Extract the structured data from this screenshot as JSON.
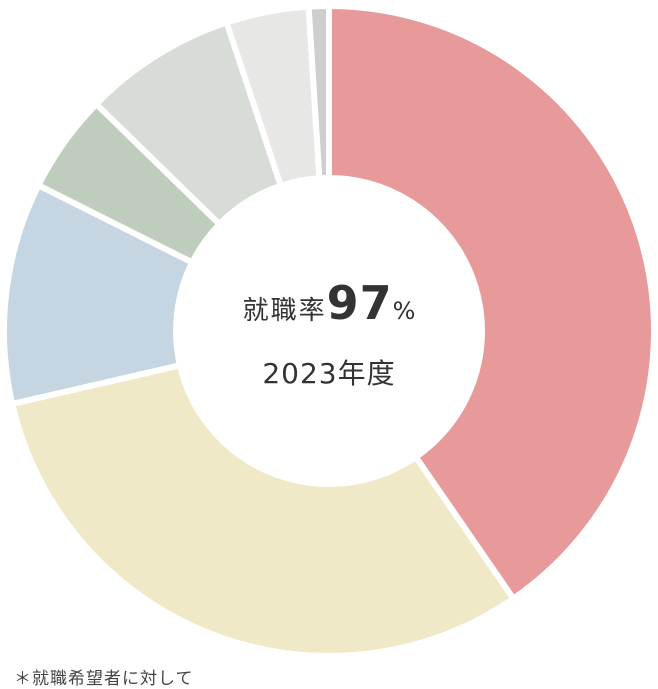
{
  "chart_data": {
    "type": "pie",
    "variant": "donut",
    "title": "",
    "center": {
      "label": "就職率",
      "value": "97",
      "unit": "%",
      "year": "2023年度"
    },
    "footnote": "＊就職希望者に対して",
    "slices": [
      {
        "value": 40.4,
        "color": "#e89a9a"
      },
      {
        "value": 31.0,
        "color": "#efe9c7"
      },
      {
        "value": 11.0,
        "color": "#c5d6e2"
      },
      {
        "value": 4.9,
        "color": "#bfcdbd"
      },
      {
        "value": 7.6,
        "color": "#d7ddd6"
      },
      {
        "value": 4.1,
        "color": "#e7e7e6"
      },
      {
        "value": 1.0,
        "color": "#cdcfcf"
      }
    ]
  }
}
